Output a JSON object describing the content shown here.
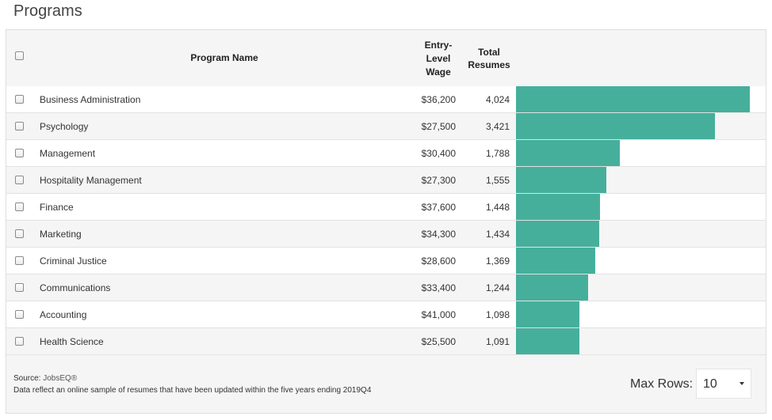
{
  "page": {
    "title": "Programs"
  },
  "table": {
    "headers": {
      "program_name": "Program Name",
      "wage_line1": "Entry-",
      "wage_line2": "Level",
      "wage_line3": "Wage",
      "resumes_line1": "Total",
      "resumes_line2": "Resumes"
    },
    "max_resumes": 4024,
    "rows": [
      {
        "name": "Business Administration",
        "wage": "$36,200",
        "resumes": "4,024",
        "resumes_value": 4024
      },
      {
        "name": "Psychology",
        "wage": "$27,500",
        "resumes": "3,421",
        "resumes_value": 3421
      },
      {
        "name": "Management",
        "wage": "$30,400",
        "resumes": "1,788",
        "resumes_value": 1788
      },
      {
        "name": "Hospitality Management",
        "wage": "$27,300",
        "resumes": "1,555",
        "resumes_value": 1555
      },
      {
        "name": "Finance",
        "wage": "$37,600",
        "resumes": "1,448",
        "resumes_value": 1448
      },
      {
        "name": "Marketing",
        "wage": "$34,300",
        "resumes": "1,434",
        "resumes_value": 1434
      },
      {
        "name": "Criminal Justice",
        "wage": "$28,600",
        "resumes": "1,369",
        "resumes_value": 1369
      },
      {
        "name": "Communications",
        "wage": "$33,400",
        "resumes": "1,244",
        "resumes_value": 1244
      },
      {
        "name": "Accounting",
        "wage": "$41,000",
        "resumes": "1,098",
        "resumes_value": 1098
      },
      {
        "name": "Health Science",
        "wage": "$25,500",
        "resumes": "1,091",
        "resumes_value": 1091
      }
    ]
  },
  "footer": {
    "source_label": "Source:",
    "source_name": "JobsEQ®",
    "note": "Data reflect an online sample of resumes that have been updated within the five years ending 2019Q4",
    "max_rows_label": "Max Rows:",
    "max_rows_value": "10"
  },
  "colors": {
    "bar": "#46af9c",
    "row_alt": "#f5f5f5"
  },
  "icons": {
    "select_caret": "caret-down-icon"
  }
}
